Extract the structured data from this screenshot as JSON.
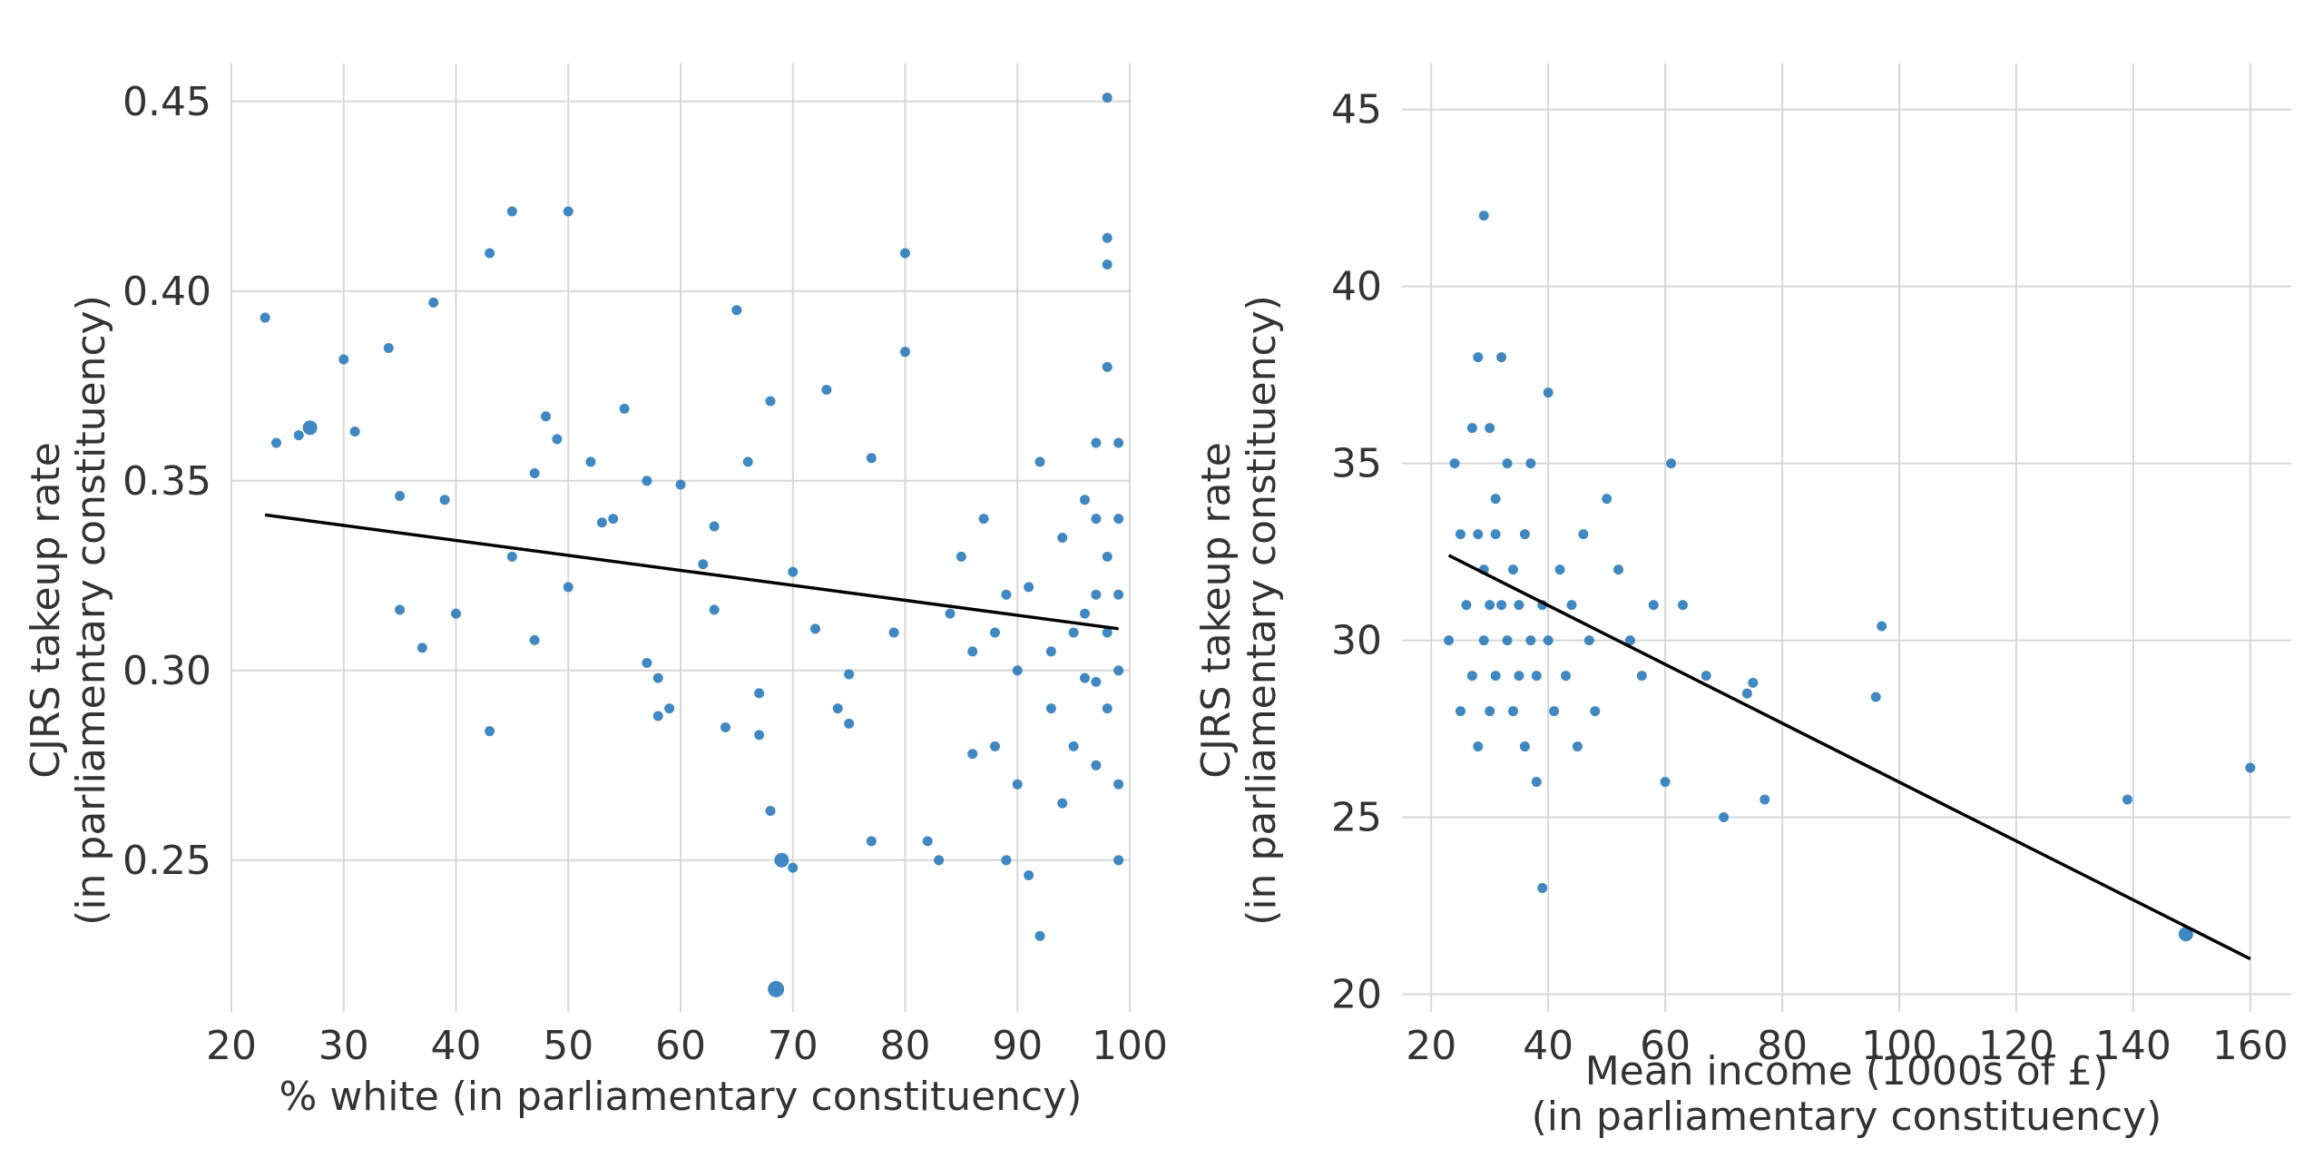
{
  "chart_data": [
    {
      "type": "scatter",
      "xlabel": "% white (in parliamentary constituency)",
      "ylabel_lines": [
        "CJRS takeup rate",
        "(in parliamentary constituency)"
      ],
      "xlim": [
        20,
        100
      ],
      "ylim": [
        0.21,
        0.46
      ],
      "xticks": [
        20,
        30,
        40,
        50,
        60,
        70,
        80,
        90,
        100
      ],
      "yticks": [
        0.25,
        0.3,
        0.35,
        0.4,
        0.45
      ],
      "ytick_labels": [
        "0.25",
        "0.30",
        "0.35",
        "0.40",
        "0.45"
      ],
      "grid": true,
      "point_color": "#2b7bba",
      "trend_line": {
        "x": [
          23,
          99
        ],
        "y": [
          0.341,
          0.311
        ],
        "color": "#000000"
      },
      "points_x": [
        23,
        24,
        26,
        27,
        30,
        31,
        34,
        35,
        35,
        37,
        38,
        39,
        40,
        43,
        43,
        45,
        45,
        47,
        47,
        48,
        49,
        50,
        50,
        52,
        53,
        54,
        55,
        57,
        57,
        58,
        58,
        59,
        60,
        62,
        63,
        63,
        64,
        65,
        66,
        67,
        67,
        68,
        68,
        69,
        70,
        70,
        72,
        73,
        74,
        75,
        75,
        77,
        77,
        79,
        80,
        80,
        82,
        83,
        84,
        85,
        86,
        86,
        87,
        88,
        88,
        89,
        89,
        90,
        90,
        91,
        91,
        92,
        92,
        93,
        93,
        94,
        94,
        95,
        95,
        96,
        96,
        96,
        97,
        97,
        97,
        97,
        97,
        98,
        98,
        98,
        98,
        98,
        98,
        98,
        99,
        99,
        99,
        99,
        99,
        99
      ],
      "points_y": [
        0.393,
        0.36,
        0.362,
        0.364,
        0.382,
        0.363,
        0.385,
        0.346,
        0.316,
        0.306,
        0.397,
        0.345,
        0.315,
        0.41,
        0.284,
        0.421,
        0.33,
        0.352,
        0.308,
        0.367,
        0.361,
        0.421,
        0.322,
        0.355,
        0.339,
        0.34,
        0.369,
        0.302,
        0.35,
        0.298,
        0.288,
        0.29,
        0.349,
        0.328,
        0.338,
        0.316,
        0.285,
        0.395,
        0.355,
        0.294,
        0.283,
        0.371,
        0.263,
        0.25,
        0.326,
        0.248,
        0.311,
        0.374,
        0.29,
        0.286,
        0.299,
        0.255,
        0.356,
        0.31,
        0.41,
        0.384,
        0.255,
        0.25,
        0.315,
        0.33,
        0.278,
        0.305,
        0.34,
        0.28,
        0.31,
        0.25,
        0.32,
        0.3,
        0.27,
        0.322,
        0.246,
        0.355,
        0.23,
        0.305,
        0.29,
        0.265,
        0.335,
        0.31,
        0.28,
        0.298,
        0.315,
        0.345,
        0.32,
        0.275,
        0.34,
        0.36,
        0.297,
        0.451,
        0.414,
        0.407,
        0.38,
        0.33,
        0.31,
        0.29,
        0.36,
        0.34,
        0.32,
        0.3,
        0.27,
        0.25
      ],
      "points_size": [
        1,
        1,
        1,
        2,
        1,
        1,
        1,
        1,
        1,
        1,
        1,
        1,
        1,
        1,
        1,
        1,
        1,
        1,
        1,
        1,
        1,
        1,
        1,
        1,
        1,
        1,
        1,
        1,
        1,
        1,
        1,
        1,
        1,
        1,
        1,
        1,
        1,
        1,
        1,
        1,
        1,
        1,
        1,
        2,
        1,
        1,
        1,
        1,
        1,
        1,
        1,
        1,
        1,
        1,
        1,
        1,
        1,
        1,
        1,
        1,
        1,
        1,
        1,
        1,
        1,
        1,
        1,
        1,
        1,
        1,
        1,
        1,
        1,
        1,
        1,
        1,
        1,
        1,
        1,
        1,
        1,
        1,
        1,
        1,
        1,
        1,
        1,
        1,
        1,
        1,
        1,
        1,
        1,
        1,
        1,
        1,
        1,
        1,
        1,
        1
      ],
      "outlier": {
        "x": 68.5,
        "y": 0.216
      }
    },
    {
      "type": "scatter",
      "xlabel_lines": [
        "Mean income (1000s of £)",
        "(in parliamentary constituency)"
      ],
      "ylabel_lines": [
        "CJRS takeup rate",
        "(in parliamentary constituency)"
      ],
      "xlim": [
        15,
        167
      ],
      "ylim": [
        19.5,
        46.3
      ],
      "xticks": [
        20,
        40,
        60,
        80,
        100,
        120,
        140,
        160
      ],
      "yticks": [
        20,
        25,
        30,
        35,
        40,
        45
      ],
      "ytick_labels": [
        "20",
        "25",
        "30",
        "35",
        "40",
        "45"
      ],
      "grid": true,
      "point_color": "#2b7bba",
      "trend_line": {
        "x": [
          23,
          160
        ],
        "y": [
          32.4,
          21.0
        ],
        "color": "#000000"
      },
      "points_x": [
        23,
        24,
        25,
        25,
        26,
        27,
        27,
        28,
        28,
        28,
        29,
        29,
        29,
        30,
        30,
        30,
        31,
        31,
        31,
        32,
        32,
        33,
        33,
        34,
        34,
        35,
        35,
        36,
        36,
        37,
        37,
        38,
        38,
        39,
        39,
        40,
        40,
        41,
        42,
        43,
        44,
        45,
        46,
        47,
        48,
        50,
        52,
        54,
        56,
        58,
        60,
        61,
        63,
        67,
        70,
        74,
        75,
        77,
        96,
        97,
        139,
        160,
        149
      ],
      "points_y": [
        30,
        35,
        33,
        28,
        31,
        36,
        29,
        33,
        38,
        27,
        32,
        42,
        30,
        31,
        36,
        28,
        34,
        29,
        33,
        31,
        38,
        30,
        35,
        28,
        32,
        29,
        31,
        33,
        27,
        30,
        35,
        29,
        26,
        31,
        23,
        37,
        30,
        28,
        32,
        29,
        31,
        27,
        33,
        30,
        28,
        34,
        32,
        30,
        29,
        31,
        26,
        35,
        31,
        29,
        25,
        28.5,
        28.8,
        25.5,
        28.4,
        30.4,
        25.5,
        26.4,
        21.7
      ],
      "points_size": [
        1,
        1,
        1,
        1,
        1,
        1,
        1,
        1,
        1,
        1,
        1,
        1,
        1,
        1,
        1,
        1,
        1,
        1,
        1,
        1,
        1,
        1,
        1,
        1,
        1,
        1,
        1,
        1,
        1,
        1,
        1,
        1,
        1,
        1,
        1,
        1,
        1,
        1,
        1,
        1,
        1,
        1,
        1,
        1,
        1,
        1,
        1,
        1,
        1,
        1,
        1,
        1,
        1,
        1,
        1,
        1,
        1,
        1,
        1,
        1,
        1,
        1,
        2
      ]
    }
  ]
}
